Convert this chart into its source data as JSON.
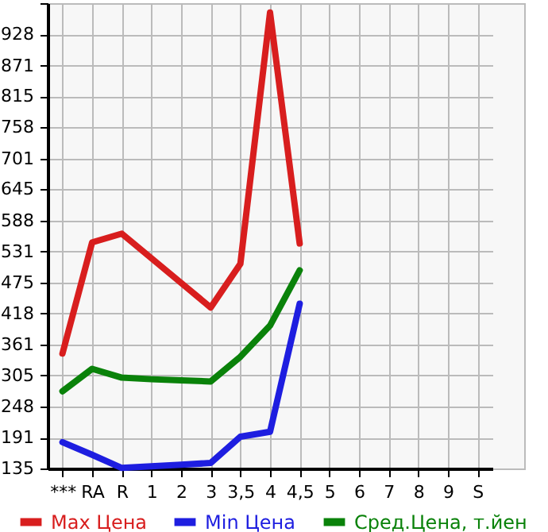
{
  "chart_data": {
    "type": "line",
    "categories": [
      "***",
      "RA",
      "R",
      "1",
      "2",
      "3",
      "3,5",
      "4",
      "4,5",
      "5",
      "6",
      "7",
      "8",
      "9",
      "S"
    ],
    "series": [
      {
        "name": "Max Цена",
        "color": "#d81e1e",
        "values": [
          345,
          548,
          564,
          519,
          474,
          429,
          509,
          968,
          546,
          null,
          null,
          null,
          null,
          null,
          null
        ]
      },
      {
        "name": "Min Цена",
        "color": "#1e1ee0",
        "values": [
          183,
          160,
          136,
          139,
          142,
          145,
          193,
          202,
          436,
          null,
          null,
          null,
          null,
          null,
          null
        ]
      },
      {
        "name": "Сред.Цена, т.йен",
        "color": "#0a820a",
        "values": [
          276,
          317,
          301,
          298,
          296,
          294,
          339,
          396,
          497,
          null,
          null,
          null,
          null,
          null,
          null
        ]
      }
    ],
    "ylim": [
      135,
      985
    ],
    "yticks": [
      135,
      191,
      248,
      305,
      361,
      418,
      475,
      531,
      588,
      645,
      701,
      758,
      815,
      871,
      928,
      {
        "value": 985,
        "label": null
      }
    ],
    "grid": true,
    "legend": "bottom",
    "marker": "none",
    "line_style": "solid"
  }
}
